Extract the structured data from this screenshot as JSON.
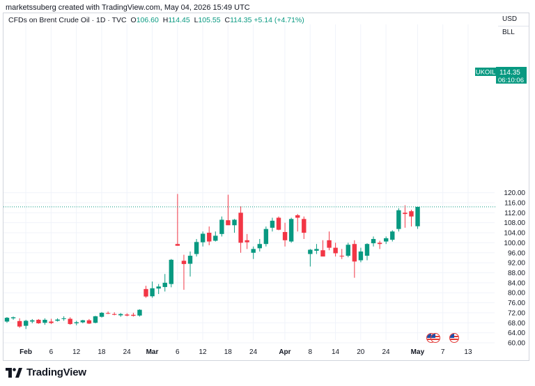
{
  "header": {
    "credit": "marketssuberg created with TradingView.com, May 04, 2026 15:49 UTC",
    "symbol": "CFDs on Brent Crude Oil · 1D · TVC",
    "o_label": "O",
    "o_value": "106.60",
    "h_label": "H",
    "h_value": "114.45",
    "l_label": "L",
    "l_value": "105.55",
    "c_label": "C",
    "c_value": "114.35",
    "change": "+5.14 (+4.71%)"
  },
  "currency_box": {
    "currency": "USD",
    "unit": "BLL"
  },
  "price_tag": {
    "ticker": "UKOIL",
    "price": "114.35",
    "countdown": "06:10:06"
  },
  "brand": {
    "name": "TradingView"
  },
  "colors": {
    "up": "#089981",
    "down": "#f23645",
    "grid": "#f0f3fa",
    "last_line": "#089981"
  },
  "icons": [
    "tradingview-logo-icon",
    "event-flag-icon"
  ],
  "chart_data": {
    "type": "candlestick",
    "title": "CFDs on Brent Crude Oil",
    "ylim": [
      60,
      120
    ],
    "y_ticks": [
      "60.00",
      "64.00",
      "68.00",
      "72.00",
      "76.00",
      "80.00",
      "84.00",
      "88.00",
      "92.00",
      "96.00",
      "100.00",
      "104.00",
      "108.00",
      "112.00",
      "116.00",
      "120.00"
    ],
    "x_ticks": [
      {
        "label": "Feb",
        "index": 1,
        "bold": true
      },
      {
        "label": "6",
        "index": 5,
        "bold": false
      },
      {
        "label": "12",
        "index": 9,
        "bold": false
      },
      {
        "label": "18",
        "index": 13,
        "bold": false
      },
      {
        "label": "24",
        "index": 17,
        "bold": false
      },
      {
        "label": "Mar",
        "index": 21,
        "bold": true
      },
      {
        "label": "6",
        "index": 25,
        "bold": false
      },
      {
        "label": "12",
        "index": 29,
        "bold": false
      },
      {
        "label": "18",
        "index": 33,
        "bold": false
      },
      {
        "label": "24",
        "index": 37,
        "bold": false
      },
      {
        "label": "Apr",
        "index": 42,
        "bold": true
      },
      {
        "label": "8",
        "index": 46,
        "bold": false
      },
      {
        "label": "14",
        "index": 50,
        "bold": false
      },
      {
        "label": "20",
        "index": 54,
        "bold": false
      },
      {
        "label": "24",
        "index": 58,
        "bold": false
      },
      {
        "label": "May",
        "index": 63,
        "bold": true
      },
      {
        "label": "7",
        "index": 67,
        "bold": false
      },
      {
        "label": "13",
        "index": 71,
        "bold": false
      }
    ],
    "last_price": 114.35,
    "candles": [
      [
        68.5,
        70.3,
        68.0,
        70.0
      ],
      [
        69.8,
        70.5,
        69.2,
        70.2
      ],
      [
        68.7,
        69.8,
        66.0,
        66.5
      ],
      [
        66.8,
        69.2,
        65.5,
        68.8
      ],
      [
        68.5,
        69.5,
        67.8,
        69.0
      ],
      [
        69.2,
        69.5,
        67.6,
        67.8
      ],
      [
        68.0,
        69.8,
        67.2,
        69.2
      ],
      [
        68.5,
        69.6,
        67.5,
        67.9
      ],
      [
        68.8,
        69.8,
        68.5,
        69.3
      ],
      [
        69.5,
        70.6,
        68.8,
        69.8
      ],
      [
        69.6,
        70.2,
        67.2,
        67.5
      ],
      [
        67.8,
        68.8,
        67.0,
        68.2
      ],
      [
        68.2,
        69.2,
        67.8,
        69.0
      ],
      [
        69.0,
        69.5,
        67.5,
        67.7
      ],
      [
        68.0,
        70.8,
        67.8,
        70.6
      ],
      [
        70.4,
        72.3,
        70.1,
        72.0
      ],
      [
        71.9,
        72.5,
        71.5,
        71.8
      ],
      [
        71.5,
        72.2,
        71.0,
        71.2
      ],
      [
        71.0,
        71.9,
        70.4,
        71.5
      ],
      [
        71.3,
        71.8,
        70.6,
        70.9
      ],
      [
        71.2,
        72.0,
        70.5,
        70.8
      ],
      [
        70.9,
        73.4,
        70.5,
        73.2
      ],
      [
        81.5,
        82.8,
        78.0,
        78.5
      ],
      [
        78.6,
        84.5,
        78.0,
        81.8
      ],
      [
        81.7,
        83.5,
        79.5,
        82.5
      ],
      [
        82.3,
        87.5,
        80.5,
        84.0
      ],
      [
        83.5,
        93.5,
        82.2,
        93.2
      ],
      [
        99.5,
        119.5,
        98.8,
        98.8
      ],
      [
        92.8,
        95.2,
        81.2,
        91.5
      ],
      [
        91.6,
        96.5,
        86.5,
        94.8
      ],
      [
        95.5,
        101.5,
        94.5,
        100.3
      ],
      [
        100.2,
        104.5,
        98.5,
        103.6
      ],
      [
        104.0,
        106.5,
        99.0,
        100.5
      ],
      [
        100.8,
        104.5,
        100.5,
        102.8
      ],
      [
        103.5,
        110.5,
        102.5,
        109.2
      ],
      [
        109.0,
        119.2,
        107.5,
        107.0
      ],
      [
        107.0,
        109.5,
        104.0,
        109.2
      ],
      [
        112.0,
        114.5,
        96.0,
        100.0
      ],
      [
        101.0,
        103.5,
        97.5,
        100.2
      ],
      [
        96.0,
        98.5,
        93.5,
        97.5
      ],
      [
        97.8,
        101.5,
        96.5,
        99.5
      ],
      [
        99.5,
        106.5,
        98.5,
        105.5
      ],
      [
        106.0,
        110.0,
        104.5,
        108.8
      ],
      [
        110.0,
        110.5,
        105.0,
        105.2
      ],
      [
        104.3,
        108.0,
        98.5,
        101.0
      ],
      [
        100.5,
        110.0,
        100.0,
        109.5
      ],
      [
        111.0,
        111.5,
        104.5,
        110.0
      ],
      [
        109.5,
        110.5,
        101.5,
        104.0
      ],
      [
        95.5,
        97.5,
        90.5,
        97.2
      ],
      [
        96.8,
        99.5,
        95.5,
        97.5
      ],
      [
        97.0,
        101.0,
        95.0,
        94.5
      ],
      [
        101.0,
        104.5,
        97.0,
        98.0
      ],
      [
        98.0,
        100.0,
        94.5,
        95.8
      ],
      [
        94.8,
        97.5,
        93.5,
        94.5
      ],
      [
        94.8,
        100.0,
        94.2,
        99.2
      ],
      [
        99.5,
        101.0,
        86.0,
        92.5
      ],
      [
        93.0,
        98.0,
        92.2,
        96.5
      ],
      [
        94.8,
        99.8,
        93.0,
        99.5
      ],
      [
        99.8,
        102.5,
        98.5,
        101.5
      ],
      [
        100.0,
        100.8,
        97.5,
        99.5
      ],
      [
        100.5,
        102.5,
        99.5,
        101.8
      ],
      [
        101.2,
        105.0,
        100.5,
        104.5
      ],
      [
        105.5,
        113.8,
        104.5,
        113.0
      ],
      [
        112.0,
        115.0,
        106.0,
        111.5
      ],
      [
        112.6,
        113.2,
        106.5,
        110.5
      ],
      [
        106.6,
        114.45,
        105.55,
        114.35
      ]
    ]
  }
}
